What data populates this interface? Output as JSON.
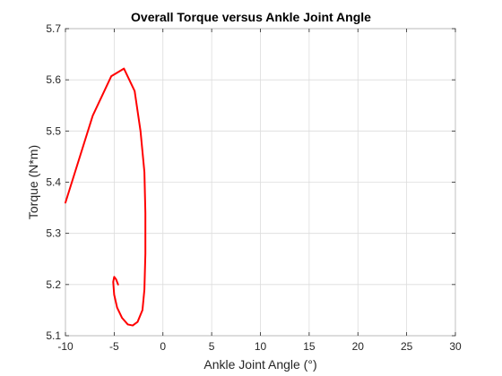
{
  "chart_data": {
    "type": "line",
    "title": "Overall Torque versus Ankle Joint Angle",
    "xlabel": "Ankle Joint Angle (°)",
    "ylabel": "Torque (N*m)",
    "xlim": [
      -10,
      30
    ],
    "ylim": [
      5.1,
      5.7
    ],
    "xticks": [
      -10,
      -5,
      0,
      5,
      10,
      15,
      20,
      25,
      30
    ],
    "yticks": [
      5.1,
      5.2,
      5.3,
      5.4,
      5.5,
      5.6,
      5.7
    ],
    "xtick_labels": [
      "-10",
      "-5",
      "0",
      "5",
      "10",
      "15",
      "20",
      "25",
      "30"
    ],
    "ytick_labels": [
      "5.1",
      "5.2",
      "5.3",
      "5.4",
      "5.5",
      "5.6",
      "5.7"
    ],
    "grid": true,
    "legend": "none",
    "series": [
      {
        "color": "#ff0000",
        "x": [
          -10.0,
          -7.2,
          -5.3,
          -4.0,
          -2.9,
          -2.3,
          -1.9,
          -1.8,
          -1.8,
          -1.9,
          -2.1,
          -2.6,
          -3.1,
          -3.6,
          -4.2,
          -4.7,
          -5.0,
          -5.1,
          -5.0,
          -4.8,
          -4.6
        ],
        "y": [
          5.36,
          5.53,
          5.607,
          5.622,
          5.578,
          5.5,
          5.42,
          5.34,
          5.26,
          5.19,
          5.15,
          5.127,
          5.12,
          5.122,
          5.135,
          5.155,
          5.18,
          5.205,
          5.215,
          5.21,
          5.2
        ]
      }
    ]
  }
}
